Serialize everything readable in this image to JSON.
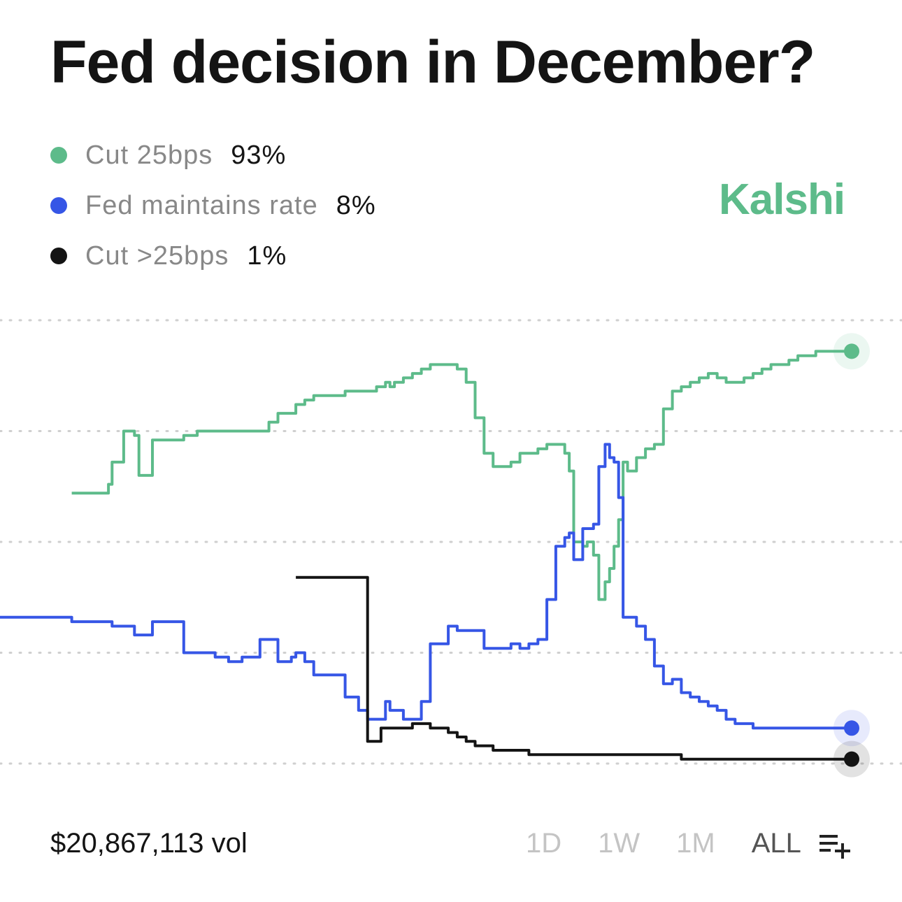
{
  "title": "Fed decision in December?",
  "brand": {
    "name": "Kalshi",
    "color": "#5dbb8a"
  },
  "legend": [
    {
      "label": "Cut 25bps",
      "value": "93%",
      "color": "#5dbb8a"
    },
    {
      "label": "Fed maintains rate",
      "value": "8%",
      "color": "#3656e6"
    },
    {
      "label": "Cut >25bps",
      "value": "1%",
      "color": "#141414"
    }
  ],
  "footer": {
    "volume": "$20,867,113 vol",
    "ranges": [
      "1D",
      "1W",
      "1M",
      "ALL"
    ],
    "active_range": "ALL",
    "add_icon": "list-add-icon"
  },
  "chart_data": {
    "type": "line",
    "title": "Fed decision in December?",
    "xlabel": "",
    "ylabel": "",
    "ylim": [
      0,
      100
    ],
    "gridlines": [
      0,
      25,
      50,
      75,
      100
    ],
    "grid": "dotted horizontal",
    "x": [
      0,
      2.5,
      4,
      5,
      6,
      7,
      7.8,
      8,
      8.3,
      8.8,
      10,
      11.8,
      12.1,
      12.5,
      13.8,
      14.2,
      15,
      15.5,
      17,
      18,
      19,
      20.5,
      22,
      24,
      25.5,
      27,
      29,
      30,
      31,
      32.5,
      33,
      33.5,
      34,
      34.5,
      35,
      37,
      38.5,
      40,
      41,
      42,
      42.5,
      43,
      43.5,
      44,
      45,
      46,
      47,
      48,
      50,
      51,
      52,
      53,
      54,
      55,
      56,
      57,
      58,
      59,
      60,
      61,
      62,
      63,
      63.5,
      64,
      65,
      65.5,
      66.2,
      66.8,
      67.5,
      68,
      68.5,
      69,
      69.5,
      70,
      71,
      72,
      73,
      74,
      75,
      76,
      77,
      78,
      79,
      80,
      81,
      82,
      83,
      84,
      85,
      86,
      87,
      88,
      89,
      90,
      91,
      92,
      93,
      94,
      95
    ],
    "series": [
      {
        "name": "Cut 25bps",
        "color": "#5dbb8a",
        "values": [
          null,
          null,
          null,
          null,
          null,
          null,
          null,
          61,
          61,
          61,
          61,
          61,
          63,
          68,
          75,
          75,
          74,
          65,
          73,
          73,
          73,
          74,
          75,
          75,
          75,
          75,
          75,
          77,
          79,
          79,
          81,
          81,
          82,
          82,
          83,
          83,
          84,
          84,
          84,
          85,
          85,
          86,
          85,
          86,
          87,
          88,
          89,
          90,
          90,
          89,
          86,
          78,
          70,
          67,
          67,
          68,
          70,
          70,
          71,
          72,
          72,
          70,
          66,
          50,
          49,
          50,
          47,
          37,
          41,
          44,
          49,
          55,
          68,
          66,
          69,
          71,
          72,
          80,
          84,
          85,
          86,
          87,
          88,
          87,
          86,
          86,
          87,
          88,
          89,
          90,
          90,
          91,
          92,
          92,
          93,
          93,
          93,
          93,
          93
        ]
      },
      {
        "name": "Fed maintains rate",
        "color": "#3656e6",
        "values": [
          33,
          33,
          33,
          33,
          33,
          33,
          33,
          32,
          32,
          32,
          32,
          32,
          32,
          31,
          31,
          31,
          29,
          29,
          32,
          32,
          32,
          25,
          25,
          24,
          23,
          24,
          28,
          28,
          23,
          24,
          25,
          25,
          23,
          23,
          20,
          20,
          15,
          12,
          10,
          10,
          10,
          14,
          12,
          12,
          10,
          10,
          14,
          27,
          31,
          30,
          30,
          30,
          26,
          26,
          26,
          27,
          26,
          27,
          28,
          37,
          49,
          51,
          52,
          46,
          53,
          53,
          54,
          67,
          72,
          69,
          68,
          60,
          33,
          33,
          31,
          28,
          22,
          18,
          19,
          16,
          15,
          14,
          13,
          12,
          10,
          9,
          9,
          8,
          8,
          8,
          8,
          8,
          8,
          8,
          8,
          8,
          8,
          8,
          8
        ]
      },
      {
        "name": "Cut >25bps",
        "color": "#141414",
        "values": [
          null,
          null,
          null,
          null,
          null,
          null,
          null,
          null,
          null,
          null,
          null,
          null,
          null,
          null,
          null,
          null,
          null,
          null,
          null,
          null,
          null,
          null,
          null,
          null,
          null,
          null,
          null,
          null,
          null,
          null,
          42,
          42,
          42,
          42,
          42,
          42,
          42,
          42,
          5,
          5,
          8,
          8,
          8,
          8,
          8,
          9,
          9,
          8,
          7,
          6,
          5,
          4,
          4,
          3,
          3,
          3,
          3,
          2,
          2,
          2,
          2,
          2,
          2,
          2,
          2,
          2,
          2,
          2,
          2,
          2,
          2,
          2,
          2,
          2,
          2,
          2,
          2,
          2,
          2,
          1,
          1,
          1,
          1,
          1,
          1,
          1,
          1,
          1,
          1,
          1,
          1,
          1,
          1,
          1,
          1,
          1,
          1,
          1,
          1
        ]
      }
    ]
  }
}
